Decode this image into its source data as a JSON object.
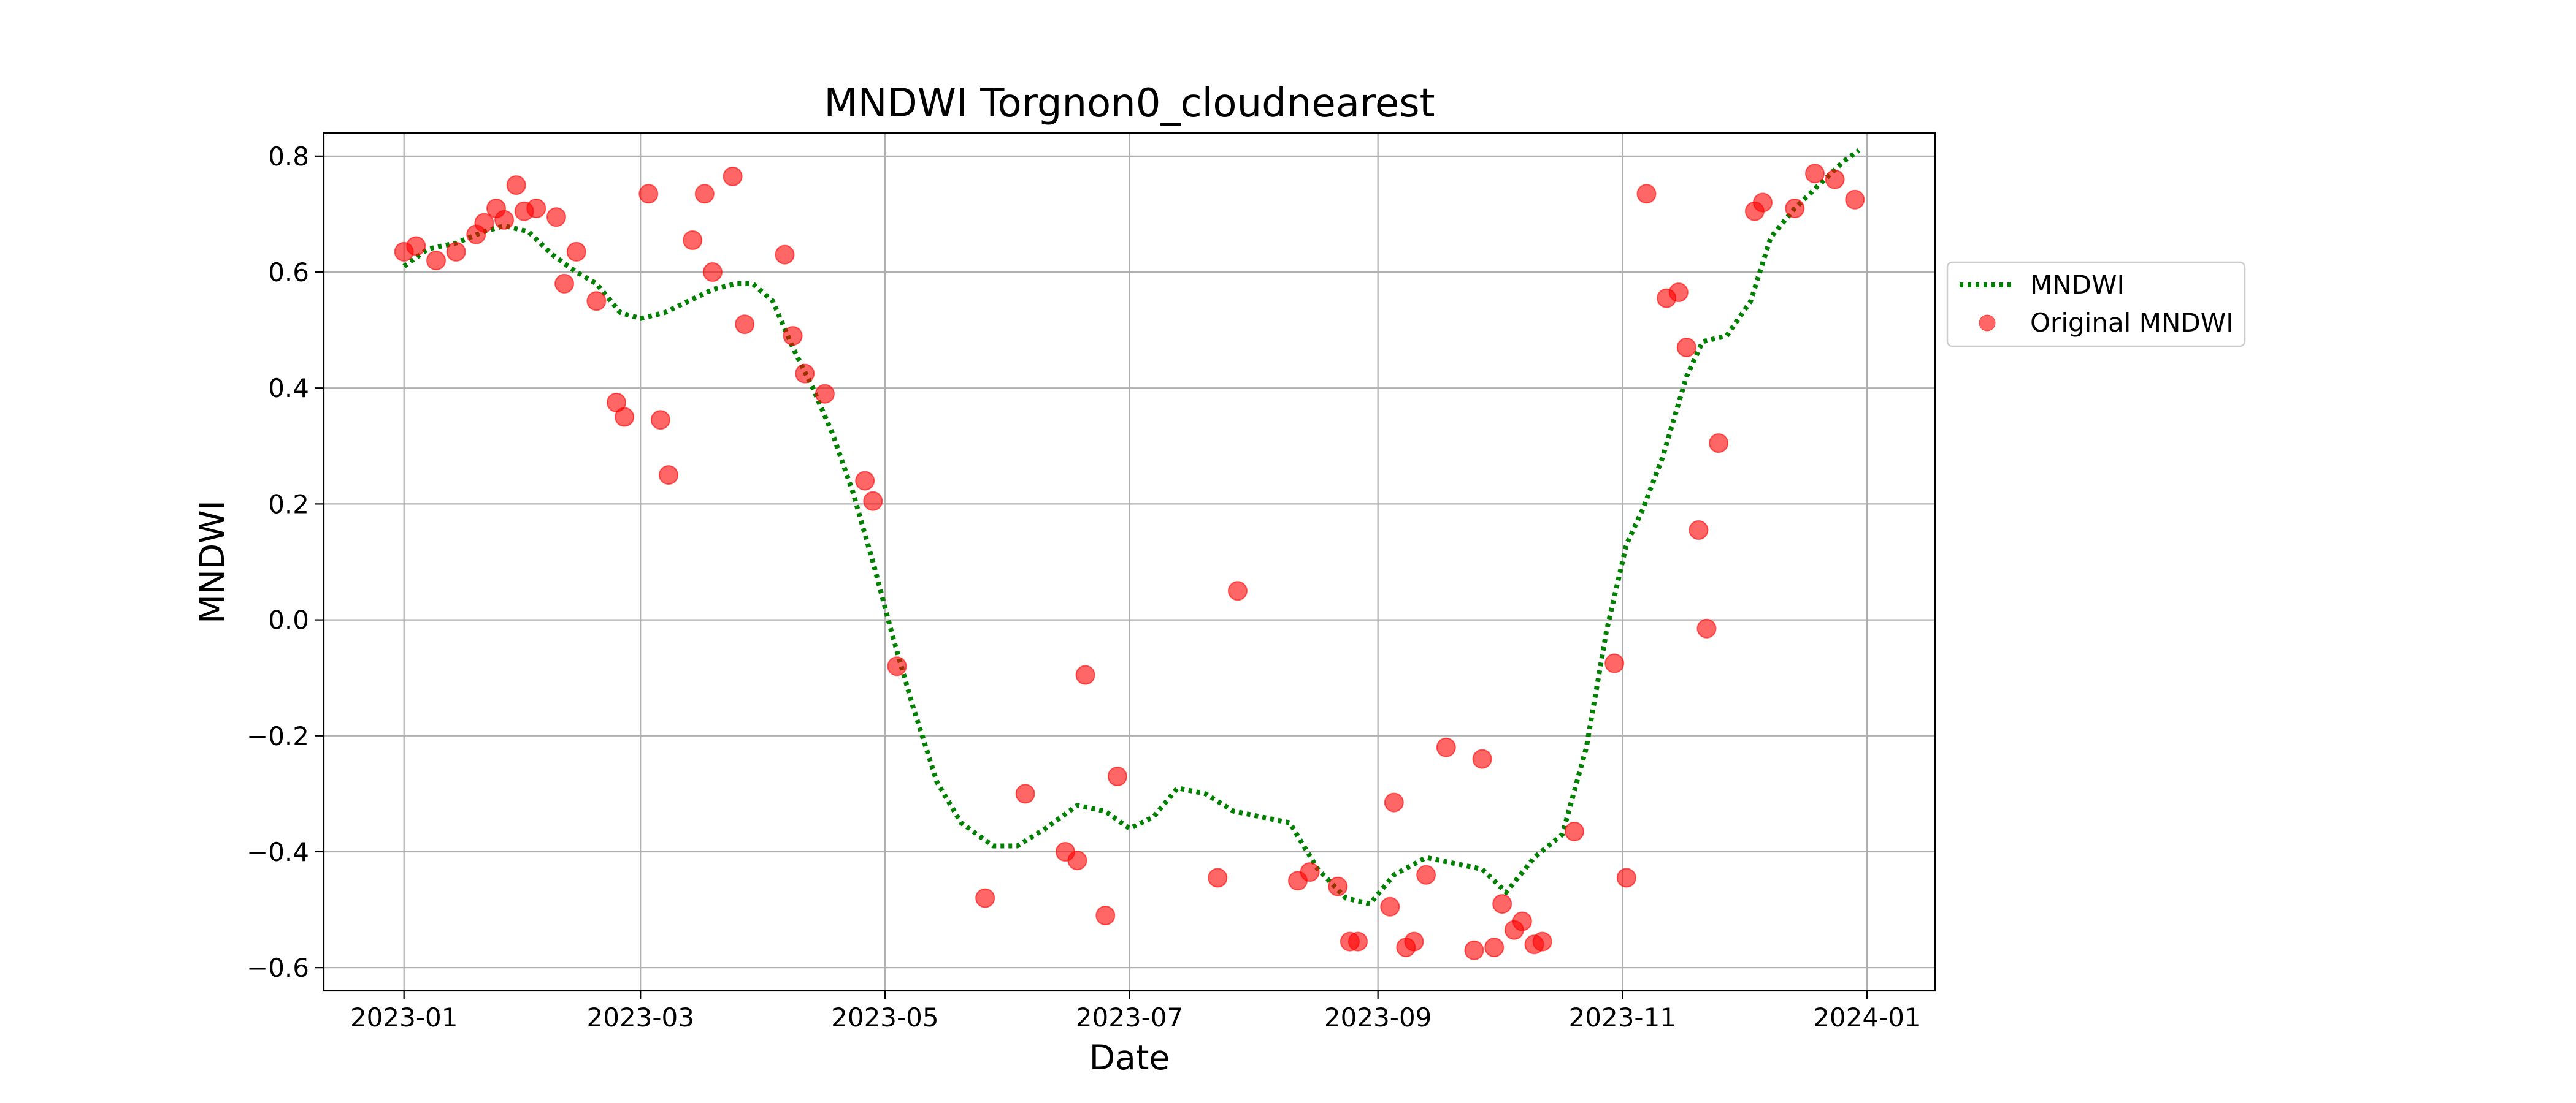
{
  "chart_data": {
    "type": "scatter",
    "title": "MNDWI Torgnon0_cloudnearest",
    "xlabel": "Date",
    "ylabel": "MNDWI",
    "xlim": [
      "2022-12-12",
      "2024-01-18"
    ],
    "ylim": [
      -0.64,
      0.84
    ],
    "x_ticks": [
      "2023-01-01",
      "2023-03-01",
      "2023-05-01",
      "2023-07-01",
      "2023-09-01",
      "2023-11-01",
      "2024-01-01"
    ],
    "x_tick_labels": [
      "2023-01",
      "2023-03",
      "2023-05",
      "2023-07",
      "2023-09",
      "2023-11",
      "2024-01"
    ],
    "y_ticks": [
      -0.6,
      -0.4,
      -0.2,
      0.0,
      0.2,
      0.4,
      0.6,
      0.8
    ],
    "y_tick_labels": [
      "−0.6",
      "−0.4",
      "−0.2",
      "0.0",
      "0.2",
      "0.4",
      "0.6",
      "0.8"
    ],
    "grid": true,
    "legend_position": "outside-right",
    "series": [
      {
        "name": "MNDWI",
        "kind": "line",
        "style": "dotted",
        "color": "#008000",
        "points": [
          [
            "2023-01-01",
            0.61
          ],
          [
            "2023-01-07",
            0.64
          ],
          [
            "2023-01-14",
            0.65
          ],
          [
            "2023-01-21",
            0.67
          ],
          [
            "2023-01-26",
            0.68
          ],
          [
            "2023-02-01",
            0.67
          ],
          [
            "2023-02-07",
            0.63
          ],
          [
            "2023-02-13",
            0.6
          ],
          [
            "2023-02-18",
            0.58
          ],
          [
            "2023-02-24",
            0.53
          ],
          [
            "2023-03-01",
            0.52
          ],
          [
            "2023-03-07",
            0.53
          ],
          [
            "2023-03-13",
            0.55
          ],
          [
            "2023-03-19",
            0.57
          ],
          [
            "2023-03-25",
            0.58
          ],
          [
            "2023-03-29",
            0.58
          ],
          [
            "2023-04-03",
            0.55
          ],
          [
            "2023-04-08",
            0.47
          ],
          [
            "2023-04-13",
            0.4
          ],
          [
            "2023-04-18",
            0.32
          ],
          [
            "2023-04-23",
            0.22
          ],
          [
            "2023-04-28",
            0.1
          ],
          [
            "2023-05-03",
            -0.03
          ],
          [
            "2023-05-08",
            -0.15
          ],
          [
            "2023-05-14",
            -0.28
          ],
          [
            "2023-05-20",
            -0.35
          ],
          [
            "2023-05-28",
            -0.39
          ],
          [
            "2023-06-03",
            -0.39
          ],
          [
            "2023-06-10",
            -0.36
          ],
          [
            "2023-06-18",
            -0.32
          ],
          [
            "2023-06-25",
            -0.33
          ],
          [
            "2023-07-01",
            -0.36
          ],
          [
            "2023-07-07",
            -0.34
          ],
          [
            "2023-07-13",
            -0.29
          ],
          [
            "2023-07-20",
            -0.3
          ],
          [
            "2023-07-27",
            -0.33
          ],
          [
            "2023-08-03",
            -0.34
          ],
          [
            "2023-08-10",
            -0.35
          ],
          [
            "2023-08-17",
            -0.43
          ],
          [
            "2023-08-24",
            -0.48
          ],
          [
            "2023-08-30",
            -0.49
          ],
          [
            "2023-09-05",
            -0.44
          ],
          [
            "2023-09-13",
            -0.41
          ],
          [
            "2023-09-20",
            -0.42
          ],
          [
            "2023-09-27",
            -0.43
          ],
          [
            "2023-10-03",
            -0.47
          ],
          [
            "2023-10-10",
            -0.41
          ],
          [
            "2023-10-17",
            -0.37
          ],
          [
            "2023-10-23",
            -0.22
          ],
          [
            "2023-10-28",
            -0.02
          ],
          [
            "2023-11-02",
            0.13
          ],
          [
            "2023-11-06",
            0.19
          ],
          [
            "2023-11-11",
            0.28
          ],
          [
            "2023-11-17",
            0.42
          ],
          [
            "2023-11-21",
            0.48
          ],
          [
            "2023-11-27",
            0.49
          ],
          [
            "2023-12-03",
            0.55
          ],
          [
            "2023-12-08",
            0.66
          ],
          [
            "2023-12-14",
            0.71
          ],
          [
            "2023-12-20",
            0.75
          ],
          [
            "2023-12-26",
            0.79
          ],
          [
            "2023-12-30",
            0.81
          ]
        ]
      },
      {
        "name": "Original MNDWI",
        "kind": "scatter",
        "color": "#ff0000",
        "points": [
          [
            "2023-01-01",
            0.635
          ],
          [
            "2023-01-04",
            0.645
          ],
          [
            "2023-01-09",
            0.62
          ],
          [
            "2023-01-14",
            0.635
          ],
          [
            "2023-01-19",
            0.665
          ],
          [
            "2023-01-21",
            0.685
          ],
          [
            "2023-01-24",
            0.71
          ],
          [
            "2023-01-26",
            0.69
          ],
          [
            "2023-01-29",
            0.75
          ],
          [
            "2023-01-31",
            0.705
          ],
          [
            "2023-02-03",
            0.71
          ],
          [
            "2023-02-08",
            0.695
          ],
          [
            "2023-02-10",
            0.58
          ],
          [
            "2023-02-13",
            0.635
          ],
          [
            "2023-02-18",
            0.55
          ],
          [
            "2023-02-23",
            0.375
          ],
          [
            "2023-02-25",
            0.35
          ],
          [
            "2023-03-03",
            0.735
          ],
          [
            "2023-03-06",
            0.345
          ],
          [
            "2023-03-08",
            0.25
          ],
          [
            "2023-03-14",
            0.655
          ],
          [
            "2023-03-17",
            0.735
          ],
          [
            "2023-03-19",
            0.6
          ],
          [
            "2023-03-24",
            0.765
          ],
          [
            "2023-03-27",
            0.51
          ],
          [
            "2023-04-06",
            0.63
          ],
          [
            "2023-04-08",
            0.49
          ],
          [
            "2023-04-11",
            0.425
          ],
          [
            "2023-04-16",
            0.39
          ],
          [
            "2023-04-26",
            0.24
          ],
          [
            "2023-04-28",
            0.205
          ],
          [
            "2023-05-04",
            -0.08
          ],
          [
            "2023-05-26",
            -0.48
          ],
          [
            "2023-06-05",
            -0.3
          ],
          [
            "2023-06-15",
            -0.4
          ],
          [
            "2023-06-18",
            -0.415
          ],
          [
            "2023-06-20",
            -0.095
          ],
          [
            "2023-06-25",
            -0.51
          ],
          [
            "2023-06-28",
            -0.27
          ],
          [
            "2023-07-23",
            -0.445
          ],
          [
            "2023-07-28",
            0.05
          ],
          [
            "2023-08-12",
            -0.45
          ],
          [
            "2023-08-15",
            -0.435
          ],
          [
            "2023-08-22",
            -0.46
          ],
          [
            "2023-08-25",
            -0.555
          ],
          [
            "2023-08-27",
            -0.555
          ],
          [
            "2023-09-04",
            -0.495
          ],
          [
            "2023-09-05",
            -0.315
          ],
          [
            "2023-09-08",
            -0.565
          ],
          [
            "2023-09-10",
            -0.555
          ],
          [
            "2023-09-13",
            -0.44
          ],
          [
            "2023-09-18",
            -0.22
          ],
          [
            "2023-09-25",
            -0.57
          ],
          [
            "2023-09-27",
            -0.24
          ],
          [
            "2023-09-30",
            -0.565
          ],
          [
            "2023-10-02",
            -0.49
          ],
          [
            "2023-10-05",
            -0.535
          ],
          [
            "2023-10-07",
            -0.52
          ],
          [
            "2023-10-10",
            -0.56
          ],
          [
            "2023-10-12",
            -0.555
          ],
          [
            "2023-10-20",
            -0.365
          ],
          [
            "2023-10-30",
            -0.075
          ],
          [
            "2023-11-02",
            -0.445
          ],
          [
            "2023-11-07",
            0.735
          ],
          [
            "2023-11-12",
            0.555
          ],
          [
            "2023-11-15",
            0.565
          ],
          [
            "2023-11-17",
            0.47
          ],
          [
            "2023-11-20",
            0.155
          ],
          [
            "2023-11-22",
            -0.015
          ],
          [
            "2023-11-25",
            0.305
          ],
          [
            "2023-12-04",
            0.705
          ],
          [
            "2023-12-06",
            0.72
          ],
          [
            "2023-12-14",
            0.71
          ],
          [
            "2023-12-19",
            0.77
          ],
          [
            "2023-12-24",
            0.76
          ],
          [
            "2023-12-29",
            0.725
          ]
        ]
      }
    ]
  }
}
